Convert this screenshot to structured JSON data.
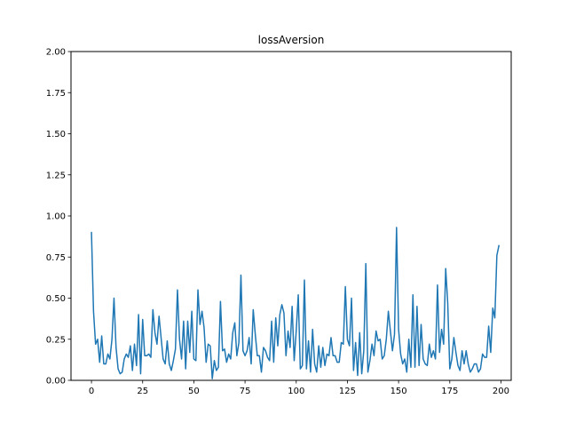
{
  "chart_data": {
    "type": "line",
    "title": "lossAversion",
    "xlabel": "",
    "ylabel": "",
    "xlim": [
      -10,
      205
    ],
    "ylim": [
      0,
      2
    ],
    "x_ticks": [
      0,
      25,
      50,
      75,
      100,
      125,
      150,
      175,
      200
    ],
    "y_ticks": [
      0,
      0.25,
      0.5,
      0.75,
      1.0,
      1.25,
      1.5,
      1.75,
      2.0
    ],
    "x_tick_labels": [
      "0",
      "25",
      "50",
      "75",
      "100",
      "125",
      "150",
      "175",
      "200"
    ],
    "y_tick_labels": [
      "0.00",
      "0.25",
      "0.50",
      "0.75",
      "1.00",
      "1.25",
      "1.50",
      "1.75",
      "2.00"
    ],
    "grid": false,
    "line_color": "#1f77b4",
    "series": [
      {
        "x_start": 0,
        "x_step": 1,
        "values": [
          0.9,
          0.42,
          0.22,
          0.25,
          0.11,
          0.27,
          0.1,
          0.1,
          0.16,
          0.13,
          0.25,
          0.5,
          0.2,
          0.07,
          0.04,
          0.05,
          0.13,
          0.16,
          0.14,
          0.21,
          0.06,
          0.22,
          0.09,
          0.4,
          0.04,
          0.37,
          0.15,
          0.15,
          0.16,
          0.14,
          0.43,
          0.29,
          0.22,
          0.39,
          0.26,
          0.13,
          0.1,
          0.24,
          0.1,
          0.06,
          0.12,
          0.19,
          0.55,
          0.25,
          0.13,
          0.36,
          0.07,
          0.36,
          0.17,
          0.42,
          0.13,
          0.12,
          0.55,
          0.34,
          0.42,
          0.32,
          0.11,
          0.22,
          0.21,
          0.01,
          0.12,
          0.06,
          0.08,
          0.48,
          0.18,
          0.19,
          0.11,
          0.16,
          0.13,
          0.29,
          0.35,
          0.15,
          0.23,
          0.64,
          0.18,
          0.15,
          0.18,
          0.26,
          0.1,
          0.43,
          0.28,
          0.15,
          0.15,
          0.05,
          0.2,
          0.18,
          0.14,
          0.12,
          0.36,
          0.11,
          0.38,
          0.21,
          0.4,
          0.46,
          0.41,
          0.15,
          0.3,
          0.2,
          0.45,
          0.12,
          0.3,
          0.52,
          0.07,
          0.09,
          0.61,
          0.07,
          0.24,
          0.05,
          0.31,
          0.1,
          0.05,
          0.21,
          0.08,
          0.2,
          0.09,
          0.16,
          0.15,
          0.26,
          0.15,
          0.15,
          0.11,
          0.11,
          0.23,
          0.22,
          0.57,
          0.25,
          0.21,
          0.5,
          0.06,
          0.23,
          0.03,
          0.29,
          0.04,
          0.18,
          0.71,
          0.05,
          0.12,
          0.22,
          0.15,
          0.3,
          0.24,
          0.25,
          0.13,
          0.15,
          0.25,
          0.42,
          0.3,
          0.18,
          0.28,
          0.93,
          0.31,
          0.16,
          0.1,
          0.13,
          0.05,
          0.25,
          0.08,
          0.52,
          0.08,
          0.45,
          0.09,
          0.34,
          0.13,
          0.1,
          0.09,
          0.22,
          0.14,
          0.18,
          0.13,
          0.58,
          0.17,
          0.31,
          0.22,
          0.68,
          0.47,
          0.07,
          0.13,
          0.26,
          0.17,
          0.09,
          0.06,
          0.18,
          0.1,
          0.18,
          0.1,
          0.05,
          0.07,
          0.1,
          0.1,
          0.05,
          0.07,
          0.16,
          0.14,
          0.14,
          0.33,
          0.17,
          0.44,
          0.38,
          0.76,
          0.82
        ]
      }
    ]
  }
}
